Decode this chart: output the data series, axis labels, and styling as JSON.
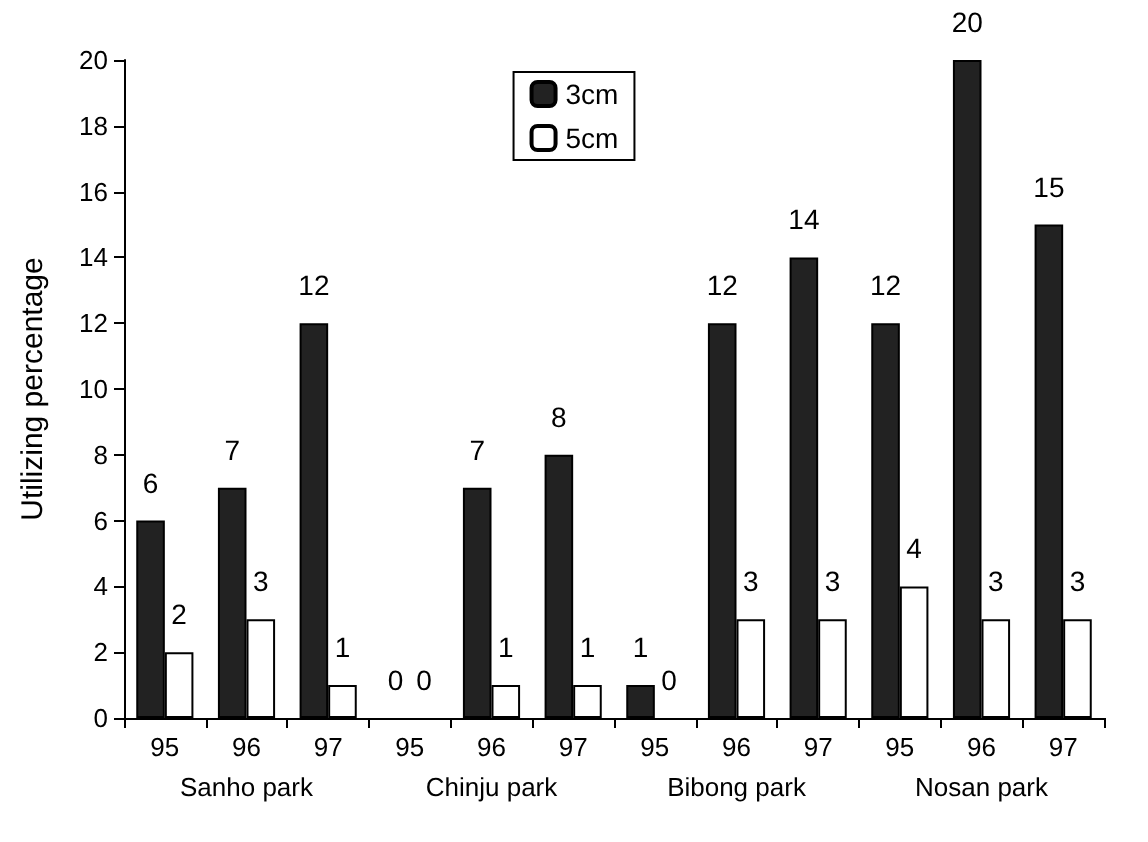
{
  "chart_data": {
    "type": "bar",
    "ylabel": "Utilizing percentage",
    "categories": [
      "95",
      "96",
      "97",
      "95",
      "96",
      "97",
      "95",
      "96",
      "97",
      "95",
      "96",
      "97"
    ],
    "series": [
      {
        "name": "3cm",
        "color": "#222222",
        "values": [
          6,
          7,
          12,
          0,
          7,
          8,
          1,
          12,
          14,
          12,
          20,
          15
        ]
      },
      {
        "name": "5cm",
        "color": "#ffffff",
        "values": [
          2,
          3,
          1,
          0,
          1,
          1,
          0,
          3,
          3,
          4,
          3,
          3
        ]
      }
    ],
    "ylim": [
      0,
      20
    ],
    "yticks": [
      0,
      2,
      4,
      6,
      8,
      10,
      12,
      14,
      16,
      18,
      20
    ],
    "grid": false,
    "legend": "top",
    "data_labels": true,
    "annotations": [
      "Sanho park",
      "Chinju park",
      "Bibong park",
      "Nosan park"
    ]
  }
}
